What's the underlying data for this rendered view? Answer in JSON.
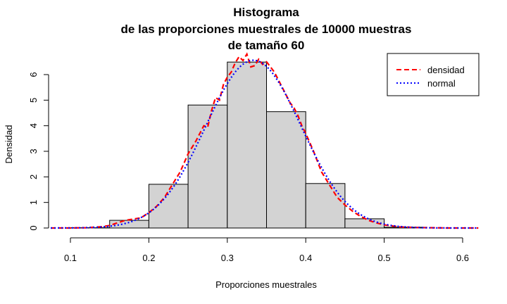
{
  "chart_data": {
    "type": "bar",
    "title_lines": [
      "Histograma",
      "de las proporciones muestrales de 10000 muestras",
      "de tamaño 60"
    ],
    "xlabel": "Proporciones muestrales",
    "ylabel": "Densidad",
    "xlim": [
      0.085,
      0.62
    ],
    "ylim": [
      0,
      6.6
    ],
    "x_ticks": [
      "0.1",
      "0.2",
      "0.3",
      "0.4",
      "0.5",
      "0.6"
    ],
    "y_ticks": [
      "0",
      "1",
      "2",
      "3",
      "4",
      "5",
      "6"
    ],
    "bins": [
      {
        "start": 0.1,
        "end": 0.15,
        "density": 0.01
      },
      {
        "start": 0.15,
        "end": 0.2,
        "density": 0.3
      },
      {
        "start": 0.2,
        "end": 0.25,
        "density": 1.71
      },
      {
        "start": 0.25,
        "end": 0.3,
        "density": 4.81
      },
      {
        "start": 0.3,
        "end": 0.35,
        "density": 6.49
      },
      {
        "start": 0.35,
        "end": 0.4,
        "density": 4.55
      },
      {
        "start": 0.4,
        "end": 0.45,
        "density": 1.74
      },
      {
        "start": 0.45,
        "end": 0.5,
        "density": 0.36
      },
      {
        "start": 0.5,
        "end": 0.55,
        "density": 0.03
      },
      {
        "start": 0.55,
        "end": 0.6,
        "density": 0.0
      }
    ],
    "bar_color": "#d3d3d3",
    "series": [
      {
        "name": "densidad",
        "color": "#ff0000",
        "style": "dashed",
        "x": [
          0.075,
          0.1,
          0.12,
          0.14,
          0.15,
          0.16,
          0.17,
          0.18,
          0.19,
          0.2,
          0.21,
          0.22,
          0.23,
          0.24,
          0.25,
          0.26,
          0.27,
          0.275,
          0.28,
          0.285,
          0.29,
          0.295,
          0.3,
          0.305,
          0.31,
          0.315,
          0.32,
          0.325,
          0.33,
          0.335,
          0.34,
          0.345,
          0.35,
          0.355,
          0.36,
          0.365,
          0.37,
          0.375,
          0.38,
          0.385,
          0.39,
          0.395,
          0.4,
          0.41,
          0.42,
          0.43,
          0.44,
          0.45,
          0.46,
          0.47,
          0.48,
          0.49,
          0.5,
          0.52,
          0.54,
          0.56,
          0.58,
          0.6,
          0.62
        ],
        "y": [
          0.0,
          0.0,
          0.01,
          0.05,
          0.1,
          0.2,
          0.3,
          0.35,
          0.4,
          0.6,
          0.85,
          1.2,
          1.7,
          2.2,
          2.9,
          3.4,
          4.0,
          3.95,
          4.6,
          5.1,
          5.0,
          5.6,
          5.9,
          6.1,
          6.45,
          6.7,
          6.55,
          6.8,
          6.3,
          6.35,
          6.6,
          6.4,
          6.5,
          6.3,
          6.1,
          5.8,
          5.5,
          5.2,
          4.9,
          4.7,
          4.4,
          4.0,
          3.7,
          3.0,
          2.2,
          1.7,
          1.2,
          0.9,
          0.65,
          0.45,
          0.3,
          0.2,
          0.12,
          0.04,
          0.02,
          0.01,
          0.0,
          0.0,
          0.0
        ]
      },
      {
        "name": "normal",
        "color": "#0000ff",
        "style": "dotted",
        "mean": 0.3333,
        "sd": 0.0608,
        "range": [
          0.075,
          0.62
        ]
      }
    ],
    "legend_position": "top-right",
    "grid": false
  }
}
